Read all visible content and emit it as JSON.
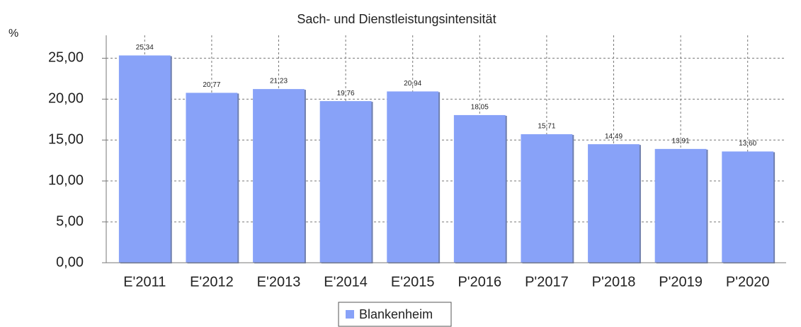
{
  "chart_data": {
    "type": "bar",
    "title": "Sach- und Dienstleistungsintensität",
    "y_label": "%",
    "categories": [
      "E'2011",
      "E'2012",
      "E'2013",
      "E'2014",
      "E'2015",
      "P'2016",
      "P'2017",
      "P'2018",
      "P'2019",
      "P'2020"
    ],
    "series": [
      {
        "name": "Blankenheim",
        "color": "#88a2f8",
        "values": [
          25.34,
          20.77,
          21.23,
          19.76,
          20.94,
          18.05,
          15.71,
          14.49,
          13.91,
          13.6
        ],
        "value_labels": [
          "25,34",
          "20,77",
          "21,23",
          "19,76",
          "20,94",
          "18,05",
          "15,71",
          "14,49",
          "13,91",
          "13,60"
        ]
      }
    ],
    "ylim": [
      0,
      27.8
    ],
    "yticks": [
      {
        "value": 0,
        "label": "0,00"
      },
      {
        "value": 5,
        "label": "5,00"
      },
      {
        "value": 10,
        "label": "10,00"
      },
      {
        "value": 15,
        "label": "15,00"
      },
      {
        "value": 20,
        "label": "20,00"
      },
      {
        "value": 25,
        "label": "25,00"
      }
    ],
    "grid": true,
    "legend": "bottom"
  }
}
